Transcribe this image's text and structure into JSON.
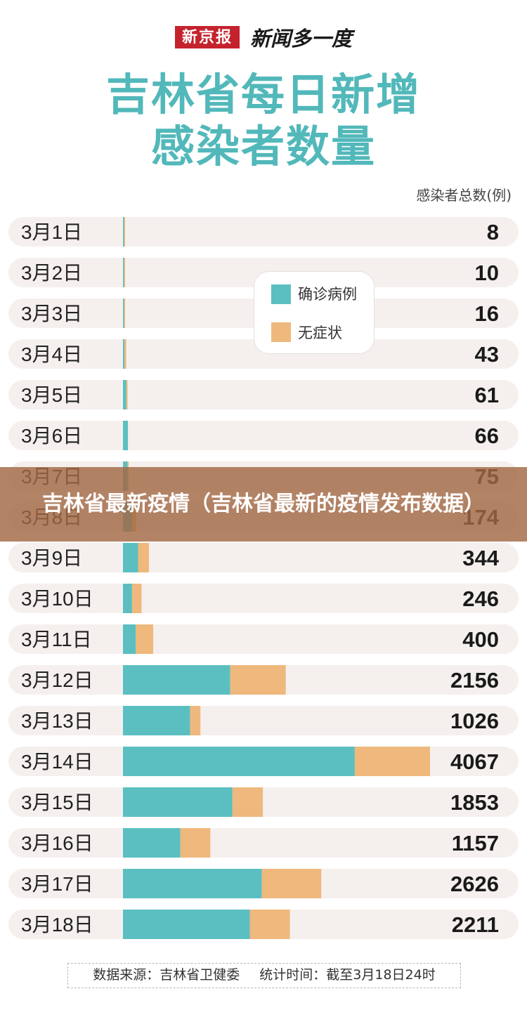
{
  "header": {
    "brand_box": "新京报",
    "brand_name": "新闻多一度"
  },
  "title_line1": "吉林省每日新增",
  "title_line2": "感染者数量",
  "unit_label": "感染者总数(例)",
  "legend": {
    "confirmed": "确诊病例",
    "asymptomatic": "无症状"
  },
  "colors": {
    "confirmed": "#5bbfc1",
    "asymptomatic": "#efb87c",
    "track": "#f5f0ee",
    "title": "#52b8ba"
  },
  "chart_data": {
    "type": "bar",
    "orientation": "horizontal",
    "stacked": true,
    "categories": [
      "3月1日",
      "3月2日",
      "3月3日",
      "3月4日",
      "3月5日",
      "3月6日",
      "3月7日",
      "3月8日",
      "3月9日",
      "3月10日",
      "3月11日",
      "3月12日",
      "3月13日",
      "3月14日",
      "3月15日",
      "3月16日",
      "3月17日",
      "3月18日"
    ],
    "series": [
      {
        "name": "确诊病例",
        "values": [
          5,
          7,
          10,
          20,
          45,
          66,
          60,
          120,
          200,
          120,
          170,
          1420,
          890,
          3070,
          1450,
          760,
          1840,
          1680
        ]
      },
      {
        "name": "无症状",
        "values": [
          3,
          3,
          6,
          23,
          16,
          0,
          15,
          54,
          144,
          126,
          230,
          736,
          136,
          997,
          403,
          397,
          786,
          531
        ]
      }
    ],
    "totals": [
      8,
      10,
      16,
      43,
      61,
      66,
      75,
      174,
      344,
      246,
      400,
      2156,
      1026,
      4067,
      1853,
      1157,
      2626,
      2211
    ],
    "xlim": [
      0,
      4067
    ],
    "legend_position": "top-center"
  },
  "source": {
    "label": "数据来源：吉林省卫健委",
    "time": "统计时间：截至3月18日24时"
  },
  "overlay_banner": "吉林省最新疫情（吉林省最新的疫情发布数据）"
}
